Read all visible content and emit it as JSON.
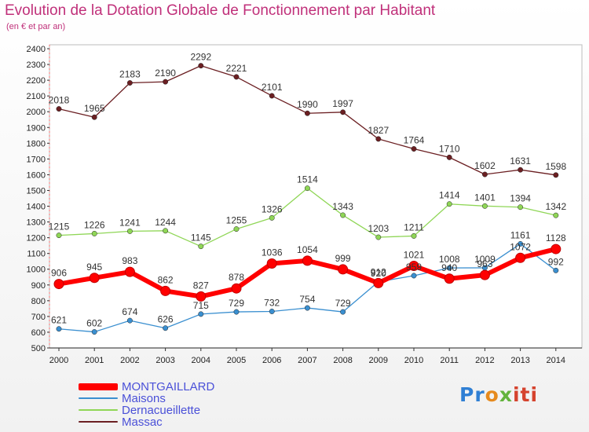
{
  "title": "Evolution de la Dotation Globale de Fonctionnement par Habitant",
  "subtitle": "(en € et par an)",
  "logo": {
    "p1": "Pr",
    "p2": "o",
    "p3": "x",
    "p4": "iti"
  },
  "chart_data": {
    "type": "line",
    "title": "Evolution de la Dotation Globale de Fonctionnement par Habitant",
    "subtitle": "(en € et par an)",
    "x": [
      "2000",
      "2001",
      "2002",
      "2003",
      "2004",
      "2005",
      "2006",
      "2007",
      "2008",
      "2009",
      "2010",
      "2011",
      "2012",
      "2013",
      "2014"
    ],
    "ylim": [
      500,
      2400
    ],
    "yticks": [
      500,
      600,
      700,
      800,
      900,
      1000,
      1100,
      1200,
      1300,
      1400,
      1500,
      1600,
      1700,
      1800,
      1900,
      2000,
      2100,
      2200,
      2300,
      2400
    ],
    "grid": false,
    "legend_position": "bottom-left",
    "series": [
      {
        "name": "MONTGAILLARD",
        "color": "#ff0000",
        "values": [
          906,
          945,
          983,
          862,
          827,
          878,
          1036,
          1054,
          999,
          912,
          1021,
          940,
          963,
          1072,
          1128
        ]
      },
      {
        "name": "Maisons",
        "color": "#3a8fd0",
        "values": [
          621,
          602,
          674,
          626,
          715,
          729,
          732,
          754,
          729,
          920,
          959,
          1008,
          1009,
          1161,
          992
        ]
      },
      {
        "name": "Dernacueillette",
        "color": "#8fd656",
        "values": [
          1215,
          1226,
          1241,
          1244,
          1145,
          1255,
          1326,
          1514,
          1343,
          1203,
          1211,
          1414,
          1401,
          1394,
          1342
        ]
      },
      {
        "name": "Massac",
        "color": "#6b1f22",
        "values": [
          2018,
          1965,
          2183,
          2190,
          2292,
          2221,
          2101,
          1990,
          1997,
          1827,
          1764,
          1710,
          1602,
          1631,
          1598
        ]
      }
    ]
  }
}
